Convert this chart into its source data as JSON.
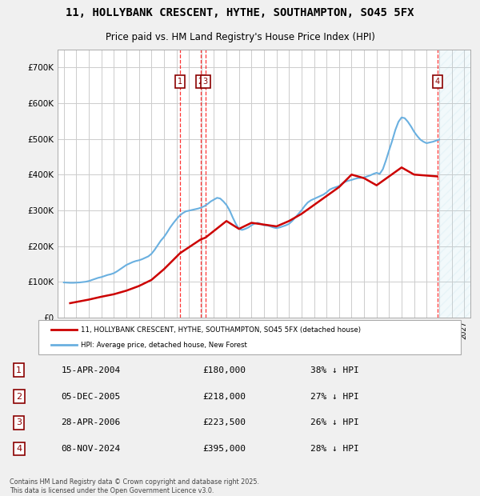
{
  "title1": "11, HOLLYBANK CRESCENT, HYTHE, SOUTHAMPTON, SO45 5FX",
  "title2": "Price paid vs. HM Land Registry's House Price Index (HPI)",
  "legend_label_red": "11, HOLLYBANK CRESCENT, HYTHE, SOUTHAMPTON, SO45 5FX (detached house)",
  "legend_label_blue": "HPI: Average price, detached house, New Forest",
  "footer": "Contains HM Land Registry data © Crown copyright and database right 2025.\nThis data is licensed under the Open Government Licence v3.0.",
  "transactions": [
    {
      "num": 1,
      "date": "15-APR-2004",
      "date_x": 2004.29,
      "price": 180000,
      "label": "£180,000",
      "pct": "38% ↓ HPI"
    },
    {
      "num": 2,
      "date": "05-DEC-2005",
      "date_x": 2005.92,
      "price": 218000,
      "label": "£218,000",
      "pct": "27% ↓ HPI"
    },
    {
      "num": 3,
      "date": "28-APR-2006",
      "date_x": 2006.32,
      "price": 223500,
      "label": "£223,500",
      "pct": "26% ↓ HPI"
    },
    {
      "num": 4,
      "date": "08-NOV-2024",
      "date_x": 2024.85,
      "price": 395000,
      "label": "£395,000",
      "pct": "28% ↓ HPI"
    }
  ],
  "hpi_color": "#6ab0e0",
  "price_color": "#cc0000",
  "background_color": "#f0f0f0",
  "plot_bg_color": "#ffffff",
  "grid_color": "#cccccc",
  "xlim": [
    1994.5,
    2027.5
  ],
  "ylim": [
    0,
    750000
  ],
  "yticks": [
    0,
    100000,
    200000,
    300000,
    400000,
    500000,
    600000,
    700000
  ],
  "ytick_labels": [
    "£0",
    "£100K",
    "£200K",
    "£300K",
    "£400K",
    "£500K",
    "£600K",
    "£700K"
  ],
  "xticks": [
    1995,
    1996,
    1997,
    1998,
    1999,
    2000,
    2001,
    2002,
    2003,
    2004,
    2005,
    2006,
    2007,
    2008,
    2009,
    2010,
    2011,
    2012,
    2013,
    2014,
    2015,
    2016,
    2017,
    2018,
    2019,
    2020,
    2021,
    2022,
    2023,
    2024,
    2025,
    2026,
    2027
  ],
  "hpi_data": {
    "x": [
      1995.0,
      1995.25,
      1995.5,
      1995.75,
      1996.0,
      1996.25,
      1996.5,
      1996.75,
      1997.0,
      1997.25,
      1997.5,
      1997.75,
      1998.0,
      1998.25,
      1998.5,
      1998.75,
      1999.0,
      1999.25,
      1999.5,
      1999.75,
      2000.0,
      2000.25,
      2000.5,
      2000.75,
      2001.0,
      2001.25,
      2001.5,
      2001.75,
      2002.0,
      2002.25,
      2002.5,
      2002.75,
      2003.0,
      2003.25,
      2003.5,
      2003.75,
      2004.0,
      2004.25,
      2004.5,
      2004.75,
      2005.0,
      2005.25,
      2005.5,
      2005.75,
      2006.0,
      2006.25,
      2006.5,
      2006.75,
      2007.0,
      2007.25,
      2007.5,
      2007.75,
      2008.0,
      2008.25,
      2008.5,
      2008.75,
      2009.0,
      2009.25,
      2009.5,
      2009.75,
      2010.0,
      2010.25,
      2010.5,
      2010.75,
      2011.0,
      2011.25,
      2011.5,
      2011.75,
      2012.0,
      2012.25,
      2012.5,
      2012.75,
      2013.0,
      2013.25,
      2013.5,
      2013.75,
      2014.0,
      2014.25,
      2014.5,
      2014.75,
      2015.0,
      2015.25,
      2015.5,
      2015.75,
      2016.0,
      2016.25,
      2016.5,
      2016.75,
      2017.0,
      2017.25,
      2017.5,
      2017.75,
      2018.0,
      2018.25,
      2018.5,
      2018.75,
      2019.0,
      2019.25,
      2019.5,
      2019.75,
      2020.0,
      2020.25,
      2020.5,
      2020.75,
      2021.0,
      2021.25,
      2021.5,
      2021.75,
      2022.0,
      2022.25,
      2022.5,
      2022.75,
      2023.0,
      2023.25,
      2023.5,
      2023.75,
      2024.0,
      2024.25,
      2024.5,
      2024.75,
      2025.0
    ],
    "y": [
      98000,
      97500,
      97000,
      97000,
      97500,
      98000,
      99000,
      100000,
      102000,
      105000,
      108000,
      111000,
      113000,
      116000,
      119000,
      121000,
      124000,
      129000,
      135000,
      141000,
      147000,
      151000,
      155000,
      158000,
      160000,
      163000,
      167000,
      171000,
      178000,
      189000,
      202000,
      215000,
      225000,
      238000,
      252000,
      264000,
      275000,
      285000,
      292000,
      297000,
      299000,
      301000,
      303000,
      305000,
      308000,
      312000,
      318000,
      325000,
      330000,
      335000,
      333000,
      325000,
      315000,
      300000,
      280000,
      262000,
      248000,
      245000,
      248000,
      252000,
      258000,
      263000,
      265000,
      262000,
      258000,
      258000,
      255000,
      252000,
      250000,
      252000,
      255000,
      258000,
      262000,
      270000,
      280000,
      290000,
      300000,
      312000,
      322000,
      328000,
      332000,
      336000,
      340000,
      344000,
      350000,
      358000,
      362000,
      365000,
      368000,
      375000,
      380000,
      383000,
      385000,
      388000,
      390000,
      391000,
      392000,
      395000,
      398000,
      402000,
      405000,
      402000,
      415000,
      440000,
      468000,
      495000,
      525000,
      548000,
      560000,
      558000,
      548000,
      535000,
      520000,
      508000,
      498000,
      492000,
      488000,
      490000,
      492000,
      495000,
      498000
    ]
  },
  "price_data": {
    "x": [
      1995.5,
      1997.0,
      1998.0,
      1999.0,
      2000.0,
      2001.0,
      2002.0,
      2003.0,
      2004.29,
      2005.92,
      2006.32,
      2008.0,
      2009.0,
      2010.0,
      2011.0,
      2012.0,
      2013.0,
      2014.0,
      2015.0,
      2016.0,
      2017.0,
      2018.0,
      2019.0,
      2020.0,
      2021.0,
      2022.0,
      2023.0,
      2024.85
    ],
    "y": [
      40000,
      50000,
      58000,
      65000,
      75000,
      88000,
      105000,
      135000,
      180000,
      218000,
      223500,
      270000,
      248000,
      265000,
      260000,
      255000,
      270000,
      290000,
      315000,
      340000,
      365000,
      400000,
      390000,
      370000,
      395000,
      420000,
      400000,
      395000
    ]
  }
}
